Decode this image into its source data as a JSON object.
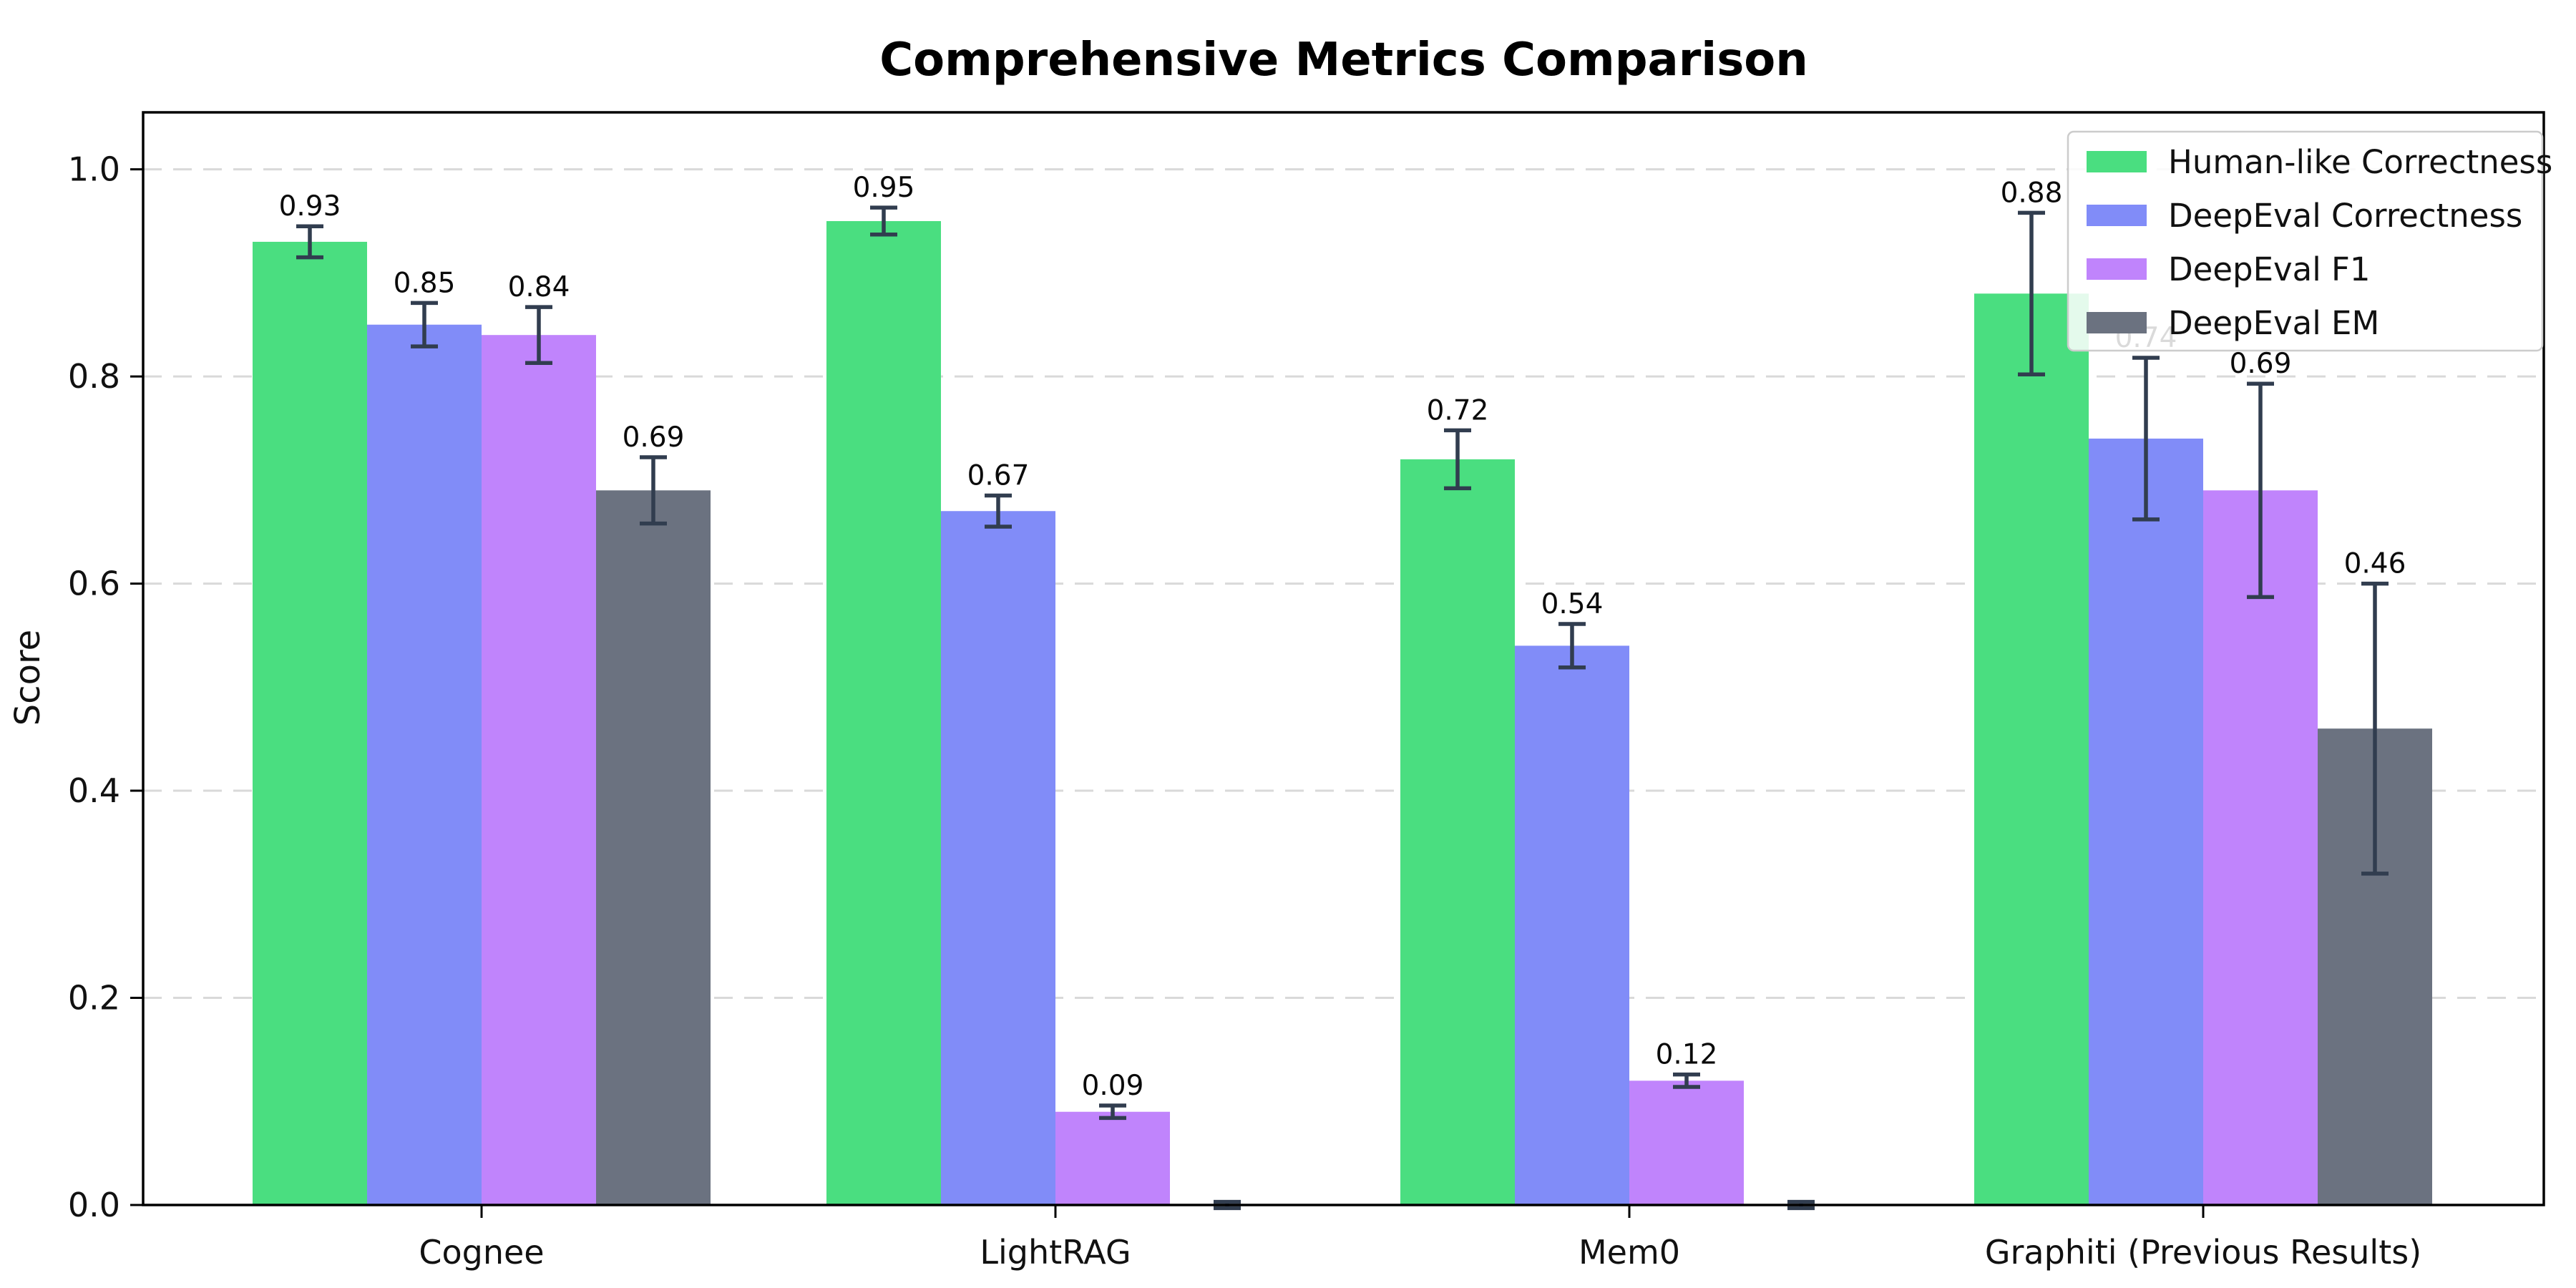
{
  "figure": {
    "background": "#ffffff"
  },
  "chart_data": {
    "type": "bar",
    "title": "Comprehensive Metrics Comparison",
    "ylabel": "Score",
    "xlabel": "",
    "categories": [
      "Cognee",
      "LightRAG",
      "Mem0",
      "Graphiti (Previous Results)"
    ],
    "series": [
      {
        "name": "Human-like Correctness",
        "color": "#4ade80",
        "values": [
          0.93,
          0.95,
          0.72,
          0.88
        ],
        "errors": [
          0.015,
          0.013,
          0.028,
          0.078
        ]
      },
      {
        "name": "DeepEval Correctness",
        "color": "#818cf8",
        "values": [
          0.85,
          0.67,
          0.54,
          0.74
        ],
        "errors": [
          0.021,
          0.015,
          0.021,
          0.078
        ]
      },
      {
        "name": "DeepEval F1",
        "color": "#c084fc",
        "values": [
          0.84,
          0.09,
          0.12,
          0.69
        ],
        "errors": [
          0.027,
          0.006,
          0.006,
          0.103
        ]
      },
      {
        "name": "DeepEval EM",
        "color": "#6b7280",
        "values": [
          0.69,
          0.0,
          0.0,
          0.46
        ],
        "errors": [
          0.032,
          0.003,
          0.003,
          0.14
        ]
      }
    ],
    "bar_value_labels": [
      "0.93",
      "0.85",
      "0.84",
      "0.69",
      "0.95",
      "0.67",
      "0.09",
      "0.72",
      "0.54",
      "0.12",
      "0.88",
      "0.74",
      "0.69",
      "0.46"
    ],
    "ylim": [
      0,
      1.055
    ],
    "yticks": [
      "0.0",
      "0.2",
      "0.4",
      "0.6",
      "0.8",
      "1.0"
    ],
    "ytick_values": [
      0,
      0.2,
      0.4,
      0.6,
      0.8,
      1.0
    ],
    "grid": "horizontal dashed",
    "legend_position": "upper right",
    "colors": {
      "error_bar": "#313d4f",
      "grid": "#d9d9d9",
      "spine": "#000000",
      "tick_text": "#111111",
      "legend_border": "#cccccc",
      "legend_bg": "#ffffff"
    }
  }
}
